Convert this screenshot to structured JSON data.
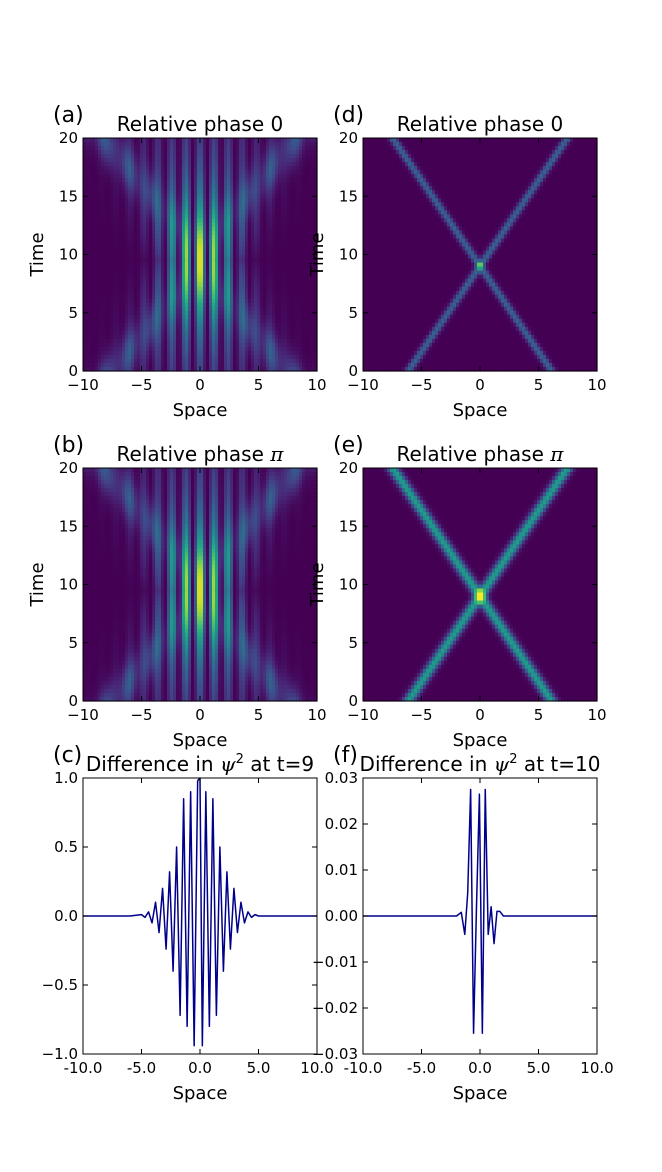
{
  "colors": {
    "viridis": [
      "#440154",
      "#482475",
      "#414487",
      "#355f8d",
      "#2a788e",
      "#21918c",
      "#22a884",
      "#44bf70",
      "#7ad151",
      "#bddf26",
      "#fde725"
    ],
    "line": "#00008b"
  },
  "chart_data": [
    {
      "id": "a",
      "panel_label": "(a)",
      "type": "heatmap",
      "title": "Relative phase 0",
      "xlabel": "Space",
      "ylabel": "Time",
      "xlim": [
        -10,
        10
      ],
      "ylim": [
        0,
        20
      ],
      "xticks": [
        "−10",
        "−5",
        "0",
        "5",
        "10"
      ],
      "xtick_values": [
        -10,
        -5,
        0,
        5,
        10
      ],
      "yticks": [
        "0",
        "5",
        "10",
        "15",
        "20"
      ],
      "ytick_values": [
        0,
        5,
        10,
        15,
        20
      ],
      "colormap": "viridis",
      "peak_time": 9.5,
      "collision": "wavepackets",
      "relative_phase": 0
    },
    {
      "id": "d",
      "panel_label": "(d)",
      "type": "heatmap",
      "title": "Relative phase 0",
      "xlabel": "Space",
      "ylabel": "Time",
      "xlim": [
        -10,
        10
      ],
      "ylim": [
        0,
        20
      ],
      "xticks": [
        "−10",
        "−5",
        "0",
        "5",
        "10"
      ],
      "xtick_values": [
        -10,
        -5,
        0,
        5,
        10
      ],
      "yticks": [
        "0",
        "5",
        "10",
        "15",
        "20"
      ],
      "ytick_values": [
        0,
        5,
        10,
        15,
        20
      ],
      "colormap": "viridis",
      "peak_time": 9,
      "collision": "solitons",
      "relative_phase": 0,
      "trajectories": [
        {
          "x0": -6,
          "x20": 7.5
        },
        {
          "x0": 6,
          "x20": -7.5
        }
      ]
    },
    {
      "id": "b",
      "panel_label": "(b)",
      "type": "heatmap",
      "title_text": "Relative phase ",
      "title_math": "π",
      "xlabel": "Space",
      "ylabel": "Time",
      "xlim": [
        -10,
        10
      ],
      "ylim": [
        0,
        20
      ],
      "xticks": [
        "−10",
        "−5",
        "0",
        "5",
        "10"
      ],
      "xtick_values": [
        -10,
        -5,
        0,
        5,
        10
      ],
      "yticks": [
        "0",
        "5",
        "10",
        "15",
        "20"
      ],
      "ytick_values": [
        0,
        5,
        10,
        15,
        20
      ],
      "colormap": "viridis",
      "peak_time": 9.5,
      "collision": "wavepackets",
      "relative_phase": "pi"
    },
    {
      "id": "e",
      "panel_label": "(e)",
      "type": "heatmap",
      "title_text": "Relative phase ",
      "title_math": "π",
      "xlabel": "Space",
      "ylabel": "Time",
      "xlim": [
        -10,
        10
      ],
      "ylim": [
        0,
        20
      ],
      "xticks": [
        "−10",
        "−5",
        "0",
        "5",
        "10"
      ],
      "xtick_values": [
        -10,
        -5,
        0,
        5,
        10
      ],
      "yticks": [
        "0",
        "5",
        "10",
        "15",
        "20"
      ],
      "ytick_values": [
        0,
        5,
        10,
        15,
        20
      ],
      "colormap": "viridis",
      "peak_time": 9,
      "collision": "solitons",
      "relative_phase": "pi",
      "trajectories": [
        {
          "x0": -6,
          "x20": 7.5
        },
        {
          "x0": 6,
          "x20": -7.5
        }
      ]
    },
    {
      "id": "c",
      "panel_label": "(c)",
      "type": "line",
      "title_pre": "Difference in ",
      "title_math": "ψ",
      "title_sup": "2",
      "title_post": " at t=9",
      "xlabel": "Space",
      "ylabel": "",
      "xlim": [
        -10,
        10
      ],
      "ylim": [
        -1,
        1
      ],
      "xticks": [
        "-10.0",
        "-5.0",
        "0.0",
        "5.0",
        "10.0"
      ],
      "xtick_values": [
        -10,
        -5,
        0,
        5,
        10
      ],
      "yticks": [
        "−1.0",
        "−0.5",
        "0.0",
        "0.5",
        "1.0"
      ],
      "ytick_values": [
        -1,
        -0.5,
        0,
        0.5,
        1
      ],
      "series": [
        {
          "x": [
            -10,
            -6,
            -5,
            -4.7,
            -4.4,
            -4.1,
            -3.8,
            -3.5,
            -3.2,
            -2.9,
            -2.6,
            -2.3,
            -2.0,
            -1.7,
            -1.4,
            -1.1,
            -0.8,
            -0.5,
            -0.2,
            0.0,
            0.2,
            0.5,
            0.8,
            1.1,
            1.4,
            1.7,
            2.0,
            2.3,
            2.6,
            2.9,
            3.2,
            3.5,
            3.8,
            4.1,
            4.4,
            4.7,
            5,
            6,
            10
          ],
          "y": [
            0,
            0,
            0.01,
            -0.01,
            0.03,
            -0.05,
            0.1,
            -0.12,
            0.2,
            -0.24,
            0.32,
            -0.4,
            0.5,
            -0.72,
            0.85,
            -0.8,
            0.9,
            -0.94,
            0.98,
            1.0,
            -0.94,
            0.9,
            -0.8,
            0.85,
            -0.72,
            0.5,
            -0.4,
            0.32,
            -0.24,
            0.2,
            -0.12,
            0.1,
            -0.05,
            0.03,
            -0.01,
            0.01,
            0,
            0,
            0
          ]
        }
      ]
    },
    {
      "id": "f",
      "panel_label": "(f)",
      "type": "line",
      "title_pre": "Difference in ",
      "title_math": "ψ",
      "title_sup": "2",
      "title_post": " at t=10",
      "xlabel": "Space",
      "ylabel": "",
      "xlim": [
        -10,
        10
      ],
      "ylim": [
        -0.03,
        0.03
      ],
      "xticks": [
        "-10.0",
        "-5.0",
        "0.0",
        "5.0",
        "10.0"
      ],
      "xtick_values": [
        -10,
        -5,
        0,
        5,
        10
      ],
      "yticks": [
        "−0.03",
        "−0.02",
        "−0.01",
        "0.00",
        "0.01",
        "0.02",
        "0.03"
      ],
      "ytick_values": [
        -0.03,
        -0.02,
        -0.01,
        0,
        0.01,
        0.02,
        0.03
      ],
      "series": [
        {
          "x": [
            -10,
            -2.0,
            -1.6,
            -1.3,
            -1.05,
            -0.8,
            -0.55,
            -0.3,
            -0.05,
            0.2,
            0.45,
            0.7,
            0.95,
            1.2,
            1.45,
            1.7,
            2.0,
            10
          ],
          "y": [
            0,
            0,
            0.0008,
            -0.004,
            0.005,
            0.0275,
            -0.0255,
            0.002,
            0.0265,
            -0.0255,
            0.0275,
            -0.004,
            0.002,
            -0.006,
            0.001,
            0.001,
            0,
            0
          ]
        }
      ]
    }
  ]
}
